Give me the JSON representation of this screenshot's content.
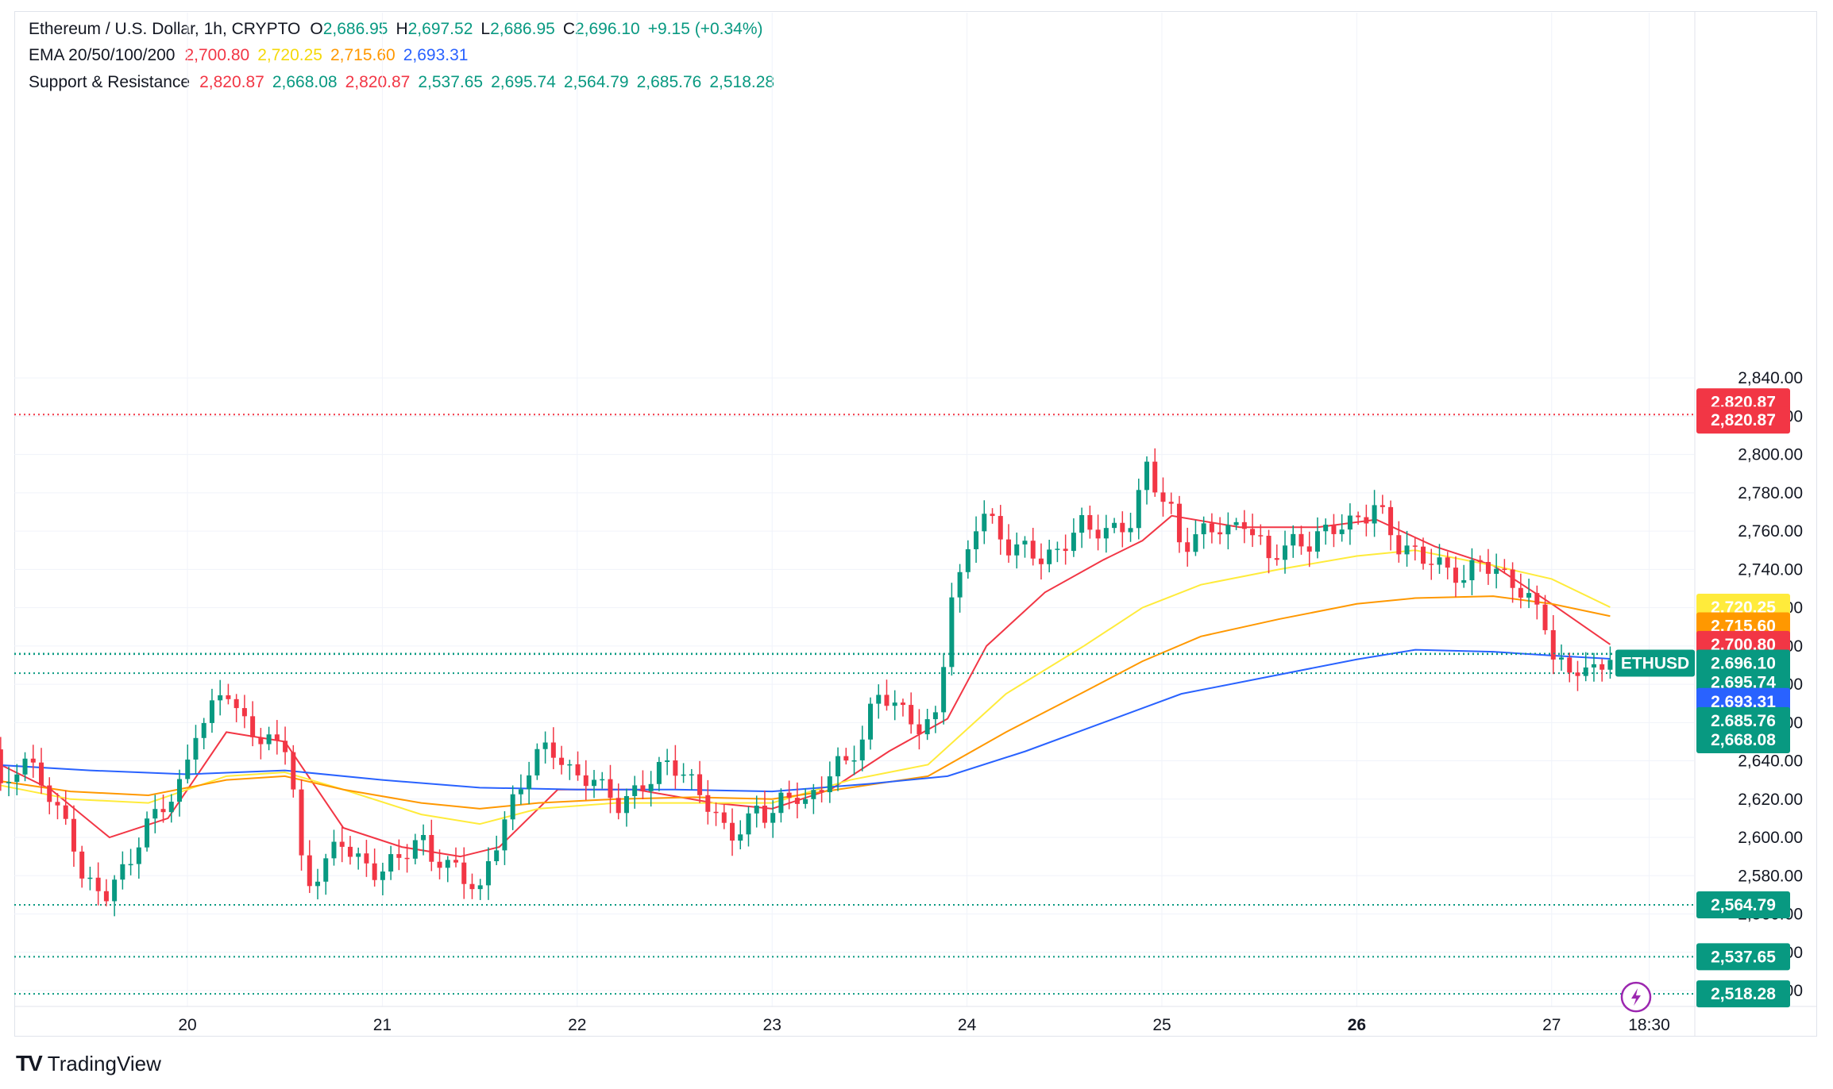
{
  "header": {
    "symbol_line": "Ethereum / U.S. Dollar, 1h, CRYPTO",
    "o_label": "O",
    "o_value": "2,686.95",
    "h_label": "H",
    "h_value": "2,697.52",
    "l_label": "L",
    "l_value": "2,686.95",
    "c_label": "C",
    "c_value": "2,696.10",
    "change": "+9.15 (+0.34%)",
    "ema_label": "EMA 20/50/100/200",
    "ema20": "2,700.80",
    "ema50": "2,720.25",
    "ema100": "2,715.60",
    "ema200": "2,693.31",
    "sr_label": "Support & Resistance",
    "sr_values": [
      "2,820.87",
      "2,668.08",
      "2,820.87",
      "2,537.65",
      "2,695.74",
      "2,564.79",
      "2,685.76",
      "2,518.28"
    ]
  },
  "brand": {
    "name": "TradingView",
    "logo": "TV"
  },
  "colors": {
    "up": "#089981",
    "down": "#f23645",
    "ema20": "#f23645",
    "ema50": "#ffeb3b",
    "ema100": "#ff9800",
    "ema200": "#2962ff",
    "resistance": "#f23645",
    "support": "#089981"
  },
  "chart_data": {
    "type": "candlestick",
    "symbol": "ETHUSD",
    "interval": "1h",
    "x_ticks": [
      "20",
      "21",
      "22",
      "23",
      "24",
      "25",
      "26",
      "27",
      "18:30"
    ],
    "x_tick_day_index": [
      1,
      2,
      3,
      4,
      5,
      6,
      7,
      8,
      8.5
    ],
    "ylim": [
      2500,
      2850
    ],
    "y_ticks": [
      2520,
      2540,
      2560,
      2580,
      2600,
      2620,
      2640,
      2660,
      2680,
      2700,
      2720,
      2740,
      2760,
      2780,
      2800,
      2820,
      2840
    ],
    "y_tick_labels": [
      "2,520.00",
      "2,540.00",
      "2,560.00",
      "2,580.00",
      "2,600.00",
      "2,620.00",
      "2,640.00",
      "2,660.00",
      "2,680.00",
      "2,700.00",
      "2,720.00",
      "2,740.00",
      "2,760.00",
      "2,780.00",
      "2,800.00",
      "2,820.00",
      "2,840.00"
    ],
    "close_path": [
      [
        0.0,
        2646
      ],
      [
        0.05,
        2620
      ],
      [
        0.1,
        2635
      ],
      [
        0.18,
        2640
      ],
      [
        0.25,
        2630
      ],
      [
        0.32,
        2615
      ],
      [
        0.4,
        2605
      ],
      [
        0.45,
        2580
      ],
      [
        0.5,
        2575
      ],
      [
        0.58,
        2570
      ],
      [
        0.65,
        2580
      ],
      [
        0.72,
        2590
      ],
      [
        0.78,
        2605
      ],
      [
        0.85,
        2615
      ],
      [
        0.92,
        2620
      ],
      [
        0.98,
        2630
      ],
      [
        1.03,
        2655
      ],
      [
        1.1,
        2660
      ],
      [
        1.15,
        2675
      ],
      [
        1.2,
        2678
      ],
      [
        1.25,
        2665
      ],
      [
        1.3,
        2660
      ],
      [
        1.38,
        2650
      ],
      [
        1.45,
        2650
      ],
      [
        1.52,
        2648
      ],
      [
        1.58,
        2588
      ],
      [
        1.63,
        2575
      ],
      [
        1.7,
        2585
      ],
      [
        1.78,
        2600
      ],
      [
        1.85,
        2590
      ],
      [
        1.92,
        2585
      ],
      [
        1.98,
        2580
      ],
      [
        2.05,
        2588
      ],
      [
        2.12,
        2592
      ],
      [
        2.2,
        2600
      ],
      [
        2.25,
        2590
      ],
      [
        2.32,
        2585
      ],
      [
        2.38,
        2585
      ],
      [
        2.45,
        2575
      ],
      [
        2.5,
        2570
      ],
      [
        2.55,
        2590
      ],
      [
        2.6,
        2600
      ],
      [
        2.65,
        2615
      ],
      [
        2.7,
        2625
      ],
      [
        2.75,
        2635
      ],
      [
        2.82,
        2648
      ],
      [
        2.88,
        2645
      ],
      [
        2.95,
        2635
      ],
      [
        3.0,
        2632
      ],
      [
        3.08,
        2630
      ],
      [
        3.15,
        2625
      ],
      [
        3.22,
        2615
      ],
      [
        3.3,
        2625
      ],
      [
        3.38,
        2630
      ],
      [
        3.45,
        2640
      ],
      [
        3.52,
        2635
      ],
      [
        3.58,
        2630
      ],
      [
        3.65,
        2620
      ],
      [
        3.72,
        2610
      ],
      [
        3.78,
        2600
      ],
      [
        3.85,
        2605
      ],
      [
        3.92,
        2615
      ],
      [
        3.98,
        2610
      ],
      [
        4.05,
        2620
      ],
      [
        4.12,
        2622
      ],
      [
        4.18,
        2618
      ],
      [
        4.25,
        2625
      ],
      [
        4.32,
        2640
      ],
      [
        4.38,
        2638
      ],
      [
        4.45,
        2648
      ],
      [
        4.5,
        2665
      ],
      [
        4.55,
        2675
      ],
      [
        4.6,
        2672
      ],
      [
        4.65,
        2668
      ],
      [
        4.7,
        2662
      ],
      [
        4.78,
        2655
      ],
      [
        4.82,
        2665
      ],
      [
        4.86,
        2660
      ],
      [
        4.9,
        2725
      ],
      [
        4.95,
        2730
      ],
      [
        5.0,
        2748
      ],
      [
        5.05,
        2765
      ],
      [
        5.1,
        2770
      ],
      [
        5.15,
        2760
      ],
      [
        5.22,
        2750
      ],
      [
        5.3,
        2752
      ],
      [
        5.38,
        2745
      ],
      [
        5.45,
        2748
      ],
      [
        5.52,
        2755
      ],
      [
        5.58,
        2765
      ],
      [
        5.65,
        2760
      ],
      [
        5.72,
        2760
      ],
      [
        5.8,
        2762
      ],
      [
        5.85,
        2765
      ],
      [
        5.92,
        2795
      ],
      [
        5.98,
        2780
      ],
      [
        6.05,
        2770
      ],
      [
        6.1,
        2750
      ],
      [
        6.15,
        2755
      ],
      [
        6.2,
        2760
      ],
      [
        6.28,
        2762
      ],
      [
        6.35,
        2760
      ],
      [
        6.42,
        2765
      ],
      [
        6.5,
        2755
      ],
      [
        6.55,
        2745
      ],
      [
        6.6,
        2750
      ],
      [
        6.68,
        2755
      ],
      [
        6.75,
        2752
      ],
      [
        6.82,
        2760
      ],
      [
        6.9,
        2762
      ],
      [
        6.98,
        2765
      ],
      [
        7.05,
        2768
      ],
      [
        7.1,
        2775
      ],
      [
        7.15,
        2765
      ],
      [
        7.2,
        2752
      ],
      [
        7.28,
        2750
      ],
      [
        7.35,
        2745
      ],
      [
        7.4,
        2745
      ],
      [
        7.48,
        2738
      ],
      [
        7.55,
        2735
      ],
      [
        7.62,
        2745
      ],
      [
        7.7,
        2740
      ],
      [
        7.78,
        2735
      ],
      [
        7.82,
        2730
      ],
      [
        7.88,
        2725
      ],
      [
        7.92,
        2720
      ],
      [
        7.96,
        2715
      ],
      [
        8.0,
        2695
      ],
      [
        8.05,
        2690
      ],
      [
        8.1,
        2685
      ],
      [
        8.15,
        2690
      ],
      [
        8.2,
        2686
      ],
      [
        8.25,
        2688
      ],
      [
        8.3,
        2696.1
      ]
    ],
    "ema_series": [
      {
        "name": "EMA 20",
        "color": "#f23645",
        "last": 2700.8,
        "points": [
          [
            0,
            2640
          ],
          [
            0.3,
            2625
          ],
          [
            0.6,
            2600
          ],
          [
            0.9,
            2610
          ],
          [
            1.2,
            2655
          ],
          [
            1.5,
            2650
          ],
          [
            1.8,
            2605
          ],
          [
            2.1,
            2595
          ],
          [
            2.4,
            2590
          ],
          [
            2.6,
            2595
          ],
          [
            2.9,
            2625
          ],
          [
            3.3,
            2625
          ],
          [
            3.7,
            2618
          ],
          [
            4.0,
            2615
          ],
          [
            4.3,
            2625
          ],
          [
            4.6,
            2645
          ],
          [
            4.9,
            2662
          ],
          [
            5.1,
            2700
          ],
          [
            5.4,
            2728
          ],
          [
            5.7,
            2745
          ],
          [
            5.9,
            2755
          ],
          [
            6.05,
            2768
          ],
          [
            6.4,
            2762
          ],
          [
            6.8,
            2762
          ],
          [
            7.1,
            2766
          ],
          [
            7.4,
            2752
          ],
          [
            7.7,
            2742
          ],
          [
            8.0,
            2722
          ],
          [
            8.3,
            2700.8
          ]
        ]
      },
      {
        "name": "EMA 50",
        "color": "#ffeb3b",
        "last": 2720.25,
        "points": [
          [
            0,
            2628
          ],
          [
            0.4,
            2620
          ],
          [
            0.8,
            2618
          ],
          [
            1.2,
            2632
          ],
          [
            1.5,
            2634
          ],
          [
            1.8,
            2625
          ],
          [
            2.2,
            2612
          ],
          [
            2.5,
            2607
          ],
          [
            2.8,
            2615
          ],
          [
            3.2,
            2618
          ],
          [
            3.6,
            2618
          ],
          [
            4.0,
            2618
          ],
          [
            4.4,
            2630
          ],
          [
            4.8,
            2638
          ],
          [
            5.2,
            2675
          ],
          [
            5.6,
            2700
          ],
          [
            5.9,
            2720
          ],
          [
            6.2,
            2732
          ],
          [
            6.6,
            2740
          ],
          [
            7.0,
            2747
          ],
          [
            7.3,
            2750
          ],
          [
            7.7,
            2742
          ],
          [
            8.0,
            2735
          ],
          [
            8.3,
            2720.25
          ]
        ]
      },
      {
        "name": "EMA 100",
        "color": "#ff9800",
        "last": 2715.6,
        "points": [
          [
            0,
            2630
          ],
          [
            0.4,
            2624
          ],
          [
            0.8,
            2622
          ],
          [
            1.2,
            2630
          ],
          [
            1.5,
            2632
          ],
          [
            1.8,
            2625
          ],
          [
            2.2,
            2618
          ],
          [
            2.5,
            2615
          ],
          [
            2.8,
            2618
          ],
          [
            3.2,
            2620
          ],
          [
            3.6,
            2621
          ],
          [
            4.0,
            2620
          ],
          [
            4.4,
            2626
          ],
          [
            4.8,
            2632
          ],
          [
            5.2,
            2655
          ],
          [
            5.6,
            2676
          ],
          [
            5.9,
            2692
          ],
          [
            6.2,
            2705
          ],
          [
            6.6,
            2714
          ],
          [
            7.0,
            2722
          ],
          [
            7.3,
            2725
          ],
          [
            7.7,
            2726
          ],
          [
            8.0,
            2722
          ],
          [
            8.3,
            2715.6
          ]
        ]
      },
      {
        "name": "EMA 200",
        "color": "#2962ff",
        "last": 2693.31,
        "points": [
          [
            0,
            2638
          ],
          [
            0.5,
            2635
          ],
          [
            1.0,
            2633
          ],
          [
            1.5,
            2635
          ],
          [
            2.0,
            2630
          ],
          [
            2.5,
            2626
          ],
          [
            3.0,
            2625
          ],
          [
            3.5,
            2625
          ],
          [
            4.0,
            2624
          ],
          [
            4.5,
            2628
          ],
          [
            4.9,
            2632
          ],
          [
            5.3,
            2645
          ],
          [
            5.7,
            2660
          ],
          [
            6.1,
            2675
          ],
          [
            6.5,
            2683
          ],
          [
            7.0,
            2693
          ],
          [
            7.3,
            2698
          ],
          [
            7.7,
            2697
          ],
          [
            8.0,
            2695
          ],
          [
            8.3,
            2693.31
          ]
        ]
      }
    ],
    "resistance_lines": [
      2820.87
    ],
    "support_lines": [
      2695.74,
      2685.76,
      2564.79,
      2537.65,
      2518.28
    ],
    "price_tags": [
      {
        "value": 2820.87,
        "label": "2,820.87",
        "color": "#f23645",
        "slot": 2827.5
      },
      {
        "value": 2820.87,
        "label": "2,820.87",
        "color": "#f23645",
        "slot": 2818.0
      },
      {
        "value": 2720.25,
        "label": "2,720.25",
        "color": "#ffeb3b",
        "text_color": "#131722",
        "slot": 2720.25
      },
      {
        "value": 2715.6,
        "label": "2,715.60",
        "color": "#ff9800",
        "slot": 2710.5
      },
      {
        "value": 2700.8,
        "label": "2,700.80",
        "color": "#f23645",
        "slot": 2700.8
      },
      {
        "value": 2696.1,
        "label": "2,696.10",
        "color": "#089981",
        "slot": 2691.0,
        "symbol": "ETHUSD"
      },
      {
        "value": 2695.74,
        "label": "2,695.74",
        "color": "#089981",
        "slot": 2681.0
      },
      {
        "value": 2693.31,
        "label": "2,693.31",
        "color": "#2962ff",
        "slot": 2671.0
      },
      {
        "value": 2685.76,
        "label": "2,685.76",
        "color": "#089981",
        "slot": 2661.0
      },
      {
        "value": 2668.08,
        "label": "2,668.08",
        "color": "#089981",
        "slot": 2651.0
      },
      {
        "value": 2564.79,
        "label": "2,564.79",
        "color": "#089981",
        "slot": 2564.79
      },
      {
        "value": 2537.65,
        "label": "2,537.65",
        "color": "#089981",
        "slot": 2537.65
      },
      {
        "value": 2518.28,
        "label": "2,518.28",
        "color": "#089981",
        "slot": 2518.28
      }
    ]
  }
}
